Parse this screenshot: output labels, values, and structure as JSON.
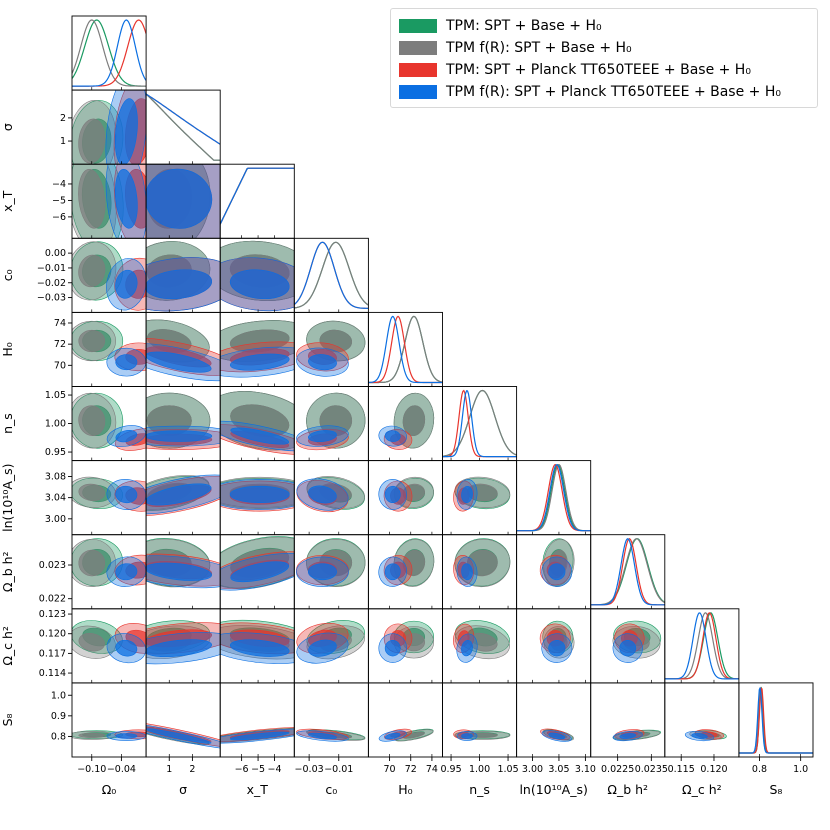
{
  "chart_data": {
    "type": "triangle-corner-plot",
    "legend_position": "top-right",
    "series": [
      {
        "name": "TPM: SPT + Base + H₀",
        "color": "#1a9a62"
      },
      {
        "name": "TPM f(R): SPT + Base + H₀",
        "color": "#7d7d7d"
      },
      {
        "name": "TPM: SPT + Planck TT650TEEE + Base + H₀",
        "color": "#e8352d"
      },
      {
        "name": "TPM f(R): SPT + Planck TT650TEEE + Base + H₀",
        "color": "#0b6fe2"
      }
    ],
    "parameters": [
      {
        "id": "omega0",
        "label": "Ω₀",
        "range": [
          -0.14,
          0.01
        ],
        "ticks": [
          -0.1,
          -0.04
        ],
        "tick_labels": [
          "−0.10",
          "−0.04"
        ]
      },
      {
        "id": "sigma",
        "label": "σ",
        "range": [
          0.0,
          3.2
        ],
        "ticks": [
          1,
          2
        ],
        "tick_labels": [
          "1",
          "2"
        ]
      },
      {
        "id": "xT",
        "label": "x_T",
        "range": [
          -7.3,
          -2.8
        ],
        "ticks": [
          -6,
          -5,
          -4
        ],
        "tick_labels": [
          "−6",
          "−5",
          "−4"
        ]
      },
      {
        "id": "c0",
        "label": "c₀",
        "range": [
          -0.04,
          0.01
        ],
        "ticks": [
          -0.03,
          -0.01
        ],
        "tick_labels": [
          "−0.03",
          "−0.01"
        ]
      },
      {
        "id": "H0",
        "label": "H₀",
        "range": [
          68.0,
          75.0
        ],
        "ticks": [
          70,
          72,
          74
        ],
        "tick_labels": [
          "70",
          "72",
          "74"
        ]
      },
      {
        "id": "ns",
        "label": "n_s",
        "range": [
          0.935,
          1.065
        ],
        "ticks": [
          0.95,
          1.0,
          1.05
        ],
        "tick_labels": [
          "0.95",
          "1.00",
          "1.05"
        ]
      },
      {
        "id": "lnAs",
        "label": "ln(10¹⁰A_s)",
        "range": [
          2.97,
          3.11
        ],
        "ticks": [
          3.0,
          3.05,
          3.1
        ],
        "tick_labels": [
          "3.00",
          "3.05",
          "3.10"
        ]
      },
      {
        "id": "ombh2",
        "label": "Ω_b h²",
        "range": [
          0.0217,
          0.0239
        ],
        "ticks": [
          0.0225,
          0.0235
        ],
        "tick_labels": [
          "0.0225",
          "0.0235"
        ]
      },
      {
        "id": "omch2",
        "label": "Ω_c h²",
        "range": [
          0.1125,
          0.1238
        ],
        "ticks": [
          0.115,
          0.12
        ],
        "tick_labels": [
          "0.115",
          "0.120"
        ]
      },
      {
        "id": "S8",
        "label": "S₈",
        "range": [
          0.7,
          1.06
        ],
        "ticks": [
          0.8,
          1.0
        ],
        "tick_labels": [
          "0.8",
          "1.0"
        ]
      }
    ],
    "y_axis_ticks": {
      "sigma": {
        "ticks": [
          1,
          2
        ],
        "tick_labels": [
          "1",
          "2"
        ]
      },
      "xT": {
        "ticks": [
          -6,
          -5,
          -4
        ],
        "tick_labels": [
          "−6",
          "−5",
          "−4"
        ]
      },
      "c0": {
        "ticks": [
          -0.03,
          -0.02,
          -0.01,
          0.0
        ],
        "tick_labels": [
          "−0.03",
          "−0.02",
          "−0.01",
          "0.00"
        ]
      },
      "H0": {
        "ticks": [
          70,
          72,
          74
        ],
        "tick_labels": [
          "70",
          "72",
          "74"
        ]
      },
      "ns": {
        "ticks": [
          0.95,
          1.0,
          1.05
        ],
        "tick_labels": [
          "0.95",
          "1.00",
          "1.05"
        ]
      },
      "lnAs": {
        "ticks": [
          3.0,
          3.04,
          3.08
        ],
        "tick_labels": [
          "3.00",
          "3.04",
          "3.08"
        ]
      },
      "ombh2": {
        "ticks": [
          0.022,
          0.023
        ],
        "tick_labels": [
          "0.022",
          "0.023"
        ]
      },
      "omch2": {
        "ticks": [
          0.114,
          0.117,
          0.12,
          0.123
        ],
        "tick_labels": [
          "0.114",
          "0.117",
          "0.120",
          "0.123"
        ]
      },
      "S8": {
        "ticks": [
          0.8,
          0.9,
          1.0
        ],
        "tick_labels": [
          "0.8",
          "0.9",
          "1.0"
        ]
      }
    },
    "posteriors": {
      "TPM: SPT + Base + H₀": {
        "omega0": [
          -0.09,
          0.024
        ],
        "sigma": [
          1.0,
          0.8,
          "onesided-lower"
        ],
        "xT": [
          -3.4,
          1.5,
          "onesided-upper"
        ],
        "c0": [
          -0.012,
          0.009
        ],
        "H0": [
          72.3,
          0.85
        ],
        "ns": [
          1.005,
          0.022
        ],
        "lnAs": [
          3.048,
          0.013
        ],
        "ombh2": [
          0.02308,
          0.00032
        ],
        "omch2": [
          0.1195,
          0.0011
        ],
        "S8": [
          0.808,
          0.009
        ]
      },
      "TPM f(R): SPT + Base + H₀": {
        "omega0": [
          -0.1,
          0.022
        ],
        "sigma": [
          1.0,
          0.8,
          "onesided-lower"
        ],
        "xT": [
          -3.4,
          1.5,
          "onesided-upper"
        ],
        "c0": [
          -0.012,
          0.009
        ],
        "H0": [
          72.3,
          0.85
        ],
        "ns": [
          1.005,
          0.022
        ],
        "lnAs": [
          3.05,
          0.013
        ],
        "ombh2": [
          0.02306,
          0.00032
        ],
        "omch2": [
          0.1187,
          0.0011
        ],
        "S8": [
          0.805,
          0.009
        ]
      },
      "TPM: SPT + Planck TT650TEEE + Base + H₀": {
        "omega0": [
          -0.005,
          0.022
        ],
        "sigma": [
          1.4,
          1.2,
          "onesided-lower"
        ],
        "xT": [
          -3.4,
          1.5,
          "onesided-upper"
        ],
        "c0": [
          -0.021,
          0.008
        ],
        "H0": [
          70.8,
          0.6
        ],
        "ns": [
          0.972,
          0.008
        ],
        "lnAs": [
          3.043,
          0.013
        ],
        "ombh2": [
          0.02285,
          0.0002
        ],
        "omch2": [
          0.1193,
          0.001
        ],
        "S8": [
          0.81,
          0.01
        ]
      },
      "TPM f(R): SPT + Planck TT650TEEE + Base + H₀": {
        "omega0": [
          -0.03,
          0.018
        ],
        "sigma": [
          1.4,
          1.2,
          "onesided-lower"
        ],
        "xT": [
          -3.4,
          1.5,
          "onesided-upper"
        ],
        "c0": [
          -0.021,
          0.008
        ],
        "H0": [
          70.3,
          0.6
        ],
        "ns": [
          0.978,
          0.008
        ],
        "lnAs": [
          3.046,
          0.013
        ],
        "ombh2": [
          0.0228,
          0.0002
        ],
        "omch2": [
          0.1178,
          0.001
        ],
        "S8": [
          0.802,
          0.01
        ]
      }
    }
  }
}
